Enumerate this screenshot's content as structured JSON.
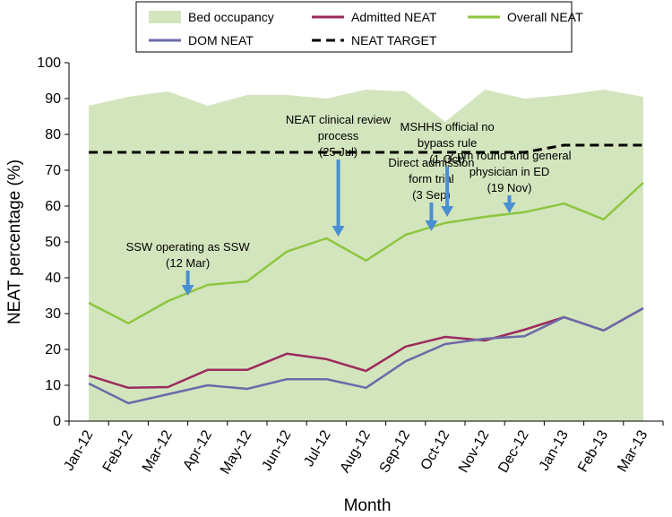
{
  "chart_data": {
    "type": "line",
    "title": "",
    "xlabel": "Month",
    "ylabel": "NEAT percentage (%)",
    "ylim": [
      0,
      100
    ],
    "yticks": [
      0,
      10,
      20,
      30,
      40,
      50,
      60,
      70,
      80,
      90,
      100
    ],
    "categories": [
      "Jan-12",
      "Feb-12",
      "Mar-12",
      "Apr-12",
      "May-12",
      "Jun-12",
      "Jul-12",
      "Aug-12",
      "Sep-12",
      "Oct-12",
      "Nov-12",
      "Dec-12",
      "Jan-13",
      "Feb-13",
      "Mar-13"
    ],
    "area": {
      "name": "Bed occupancy",
      "color": "#d3e5bd",
      "values": [
        88,
        90.5,
        92,
        88,
        91,
        91,
        90,
        92.5,
        92,
        83.5,
        92.5,
        90,
        91,
        92.5,
        90.5
      ]
    },
    "series": [
      {
        "name": "Admitted NEAT",
        "color": "#9c2b5e",
        "dash": "",
        "values": [
          12.7,
          9.3,
          9.5,
          14.3,
          14.3,
          18.8,
          17.3,
          14,
          20.8,
          23.5,
          22.5,
          25.5,
          29,
          25.3,
          31.5
        ]
      },
      {
        "name": "Overall NEAT",
        "color": "#8dc63f",
        "dash": "",
        "values": [
          33,
          27.3,
          33.5,
          38,
          39,
          47.3,
          51,
          44.8,
          52,
          55.3,
          57,
          58.3,
          60.7,
          56.3,
          66.5
        ]
      },
      {
        "name": "DOM NEAT",
        "color": "#6b6aa8",
        "dash": "",
        "values": [
          10.5,
          5,
          7.5,
          10,
          9,
          11.7,
          11.7,
          9.3,
          16.7,
          21.5,
          23,
          23.7,
          29,
          25.3,
          31.5
        ]
      },
      {
        "name": "NEAT TARGET",
        "color": "#000000",
        "dash": "10,6",
        "values": [
          75,
          75,
          75,
          75,
          75,
          75,
          75,
          75,
          75,
          75,
          75,
          75,
          77,
          77,
          77
        ]
      }
    ],
    "legend": {
      "position": "top",
      "order": [
        "Bed occupancy",
        "Admitted NEAT",
        "Overall NEAT",
        "DOM NEAT",
        "NEAT TARGET"
      ]
    },
    "arrow_color": "#4a8fd1",
    "annotations": [
      {
        "lines": [
          "SSW operating as SSW",
          "(12 Mar)"
        ],
        "x_index": 2.5,
        "arrow_from": 42,
        "arrow_to": 35
      },
      {
        "lines": [
          "NEAT clinical review",
          "process",
          "(25 Jul)"
        ],
        "x_index": 6.3,
        "arrow_from": 73,
        "arrow_to": 51.5
      },
      {
        "lines": [
          "Direct admission",
          "form trial",
          "(3 Sep)"
        ],
        "x_index": 8.65,
        "arrow_from": 61,
        "arrow_to": 53
      },
      {
        "lines": [
          "MSHHS official no",
          "bypass rule",
          "(1 Oct)"
        ],
        "x_index": 9.05,
        "arrow_from": 71,
        "arrow_to": 57
      },
      {
        "lines": [
          "2 pm round and general",
          "physician in ED",
          "(19 Nov)"
        ],
        "x_index": 10.62,
        "arrow_from": 63,
        "arrow_to": 58
      }
    ]
  }
}
